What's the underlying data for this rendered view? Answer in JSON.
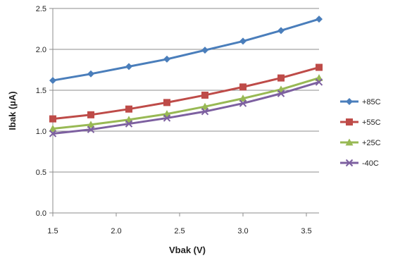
{
  "chart_data": {
    "type": "line",
    "title": "",
    "xlabel": "Vbak (V)",
    "ylabel": "Ibak (µA)",
    "xlim": [
      1.5,
      3.6
    ],
    "ylim": [
      0,
      2.5
    ],
    "x_ticks": [
      "1.5",
      "2.0",
      "2.5",
      "3.0",
      "3.5"
    ],
    "y_ticks": [
      "0.0",
      "0.5",
      "1.0",
      "1.5",
      "2.0",
      "2.5"
    ],
    "x_tick_values": [
      1.5,
      2.0,
      2.5,
      3.0,
      3.5
    ],
    "y_tick_values": [
      0,
      0.5,
      1.0,
      1.5,
      2.0,
      2.5
    ],
    "grid": "horizontal",
    "legend_position": "right",
    "x": [
      1.5,
      1.8,
      2.1,
      2.4,
      2.7,
      3.0,
      3.3,
      3.6
    ],
    "series": [
      {
        "name": "+85C",
        "color": "#4a7ebb",
        "marker": "diamond",
        "values": [
          1.62,
          1.7,
          1.79,
          1.88,
          1.99,
          2.1,
          2.23,
          2.37
        ]
      },
      {
        "name": "+55C",
        "color": "#be4b48",
        "marker": "square",
        "values": [
          1.15,
          1.2,
          1.27,
          1.35,
          1.44,
          1.54,
          1.65,
          1.78
        ]
      },
      {
        "name": "+25C",
        "color": "#98b954",
        "marker": "triangle",
        "values": [
          1.03,
          1.08,
          1.14,
          1.21,
          1.3,
          1.4,
          1.51,
          1.65
        ]
      },
      {
        "name": "-40C",
        "color": "#7d60a0",
        "marker": "x",
        "values": [
          0.97,
          1.02,
          1.09,
          1.16,
          1.24,
          1.34,
          1.46,
          1.6
        ]
      }
    ]
  }
}
